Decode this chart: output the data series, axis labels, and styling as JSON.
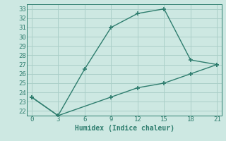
{
  "line1_x": [
    0,
    3,
    6,
    9,
    12,
    15,
    18,
    21
  ],
  "line1_y": [
    23.5,
    21.5,
    26.5,
    31.0,
    32.5,
    33.0,
    27.5,
    27.0
  ],
  "line2_x": [
    0,
    3,
    9,
    12,
    15,
    18,
    21
  ],
  "line2_y": [
    23.5,
    21.5,
    23.5,
    24.5,
    25.0,
    26.0,
    27.0
  ],
  "line_color": "#2e7d6e",
  "bg_color": "#cde8e2",
  "grid_color": "#aacfc8",
  "xlabel": "Humidex (Indice chaleur)",
  "xlim": [
    -0.5,
    21.5
  ],
  "ylim": [
    21.5,
    33.5
  ],
  "xticks": [
    0,
    3,
    6,
    9,
    12,
    15,
    18,
    21
  ],
  "yticks": [
    22,
    23,
    24,
    25,
    26,
    27,
    28,
    29,
    30,
    31,
    32,
    33
  ],
  "marker": "+",
  "marker_size": 5,
  "line_width": 1.0,
  "xlabel_fontsize": 7,
  "tick_fontsize": 6.5
}
